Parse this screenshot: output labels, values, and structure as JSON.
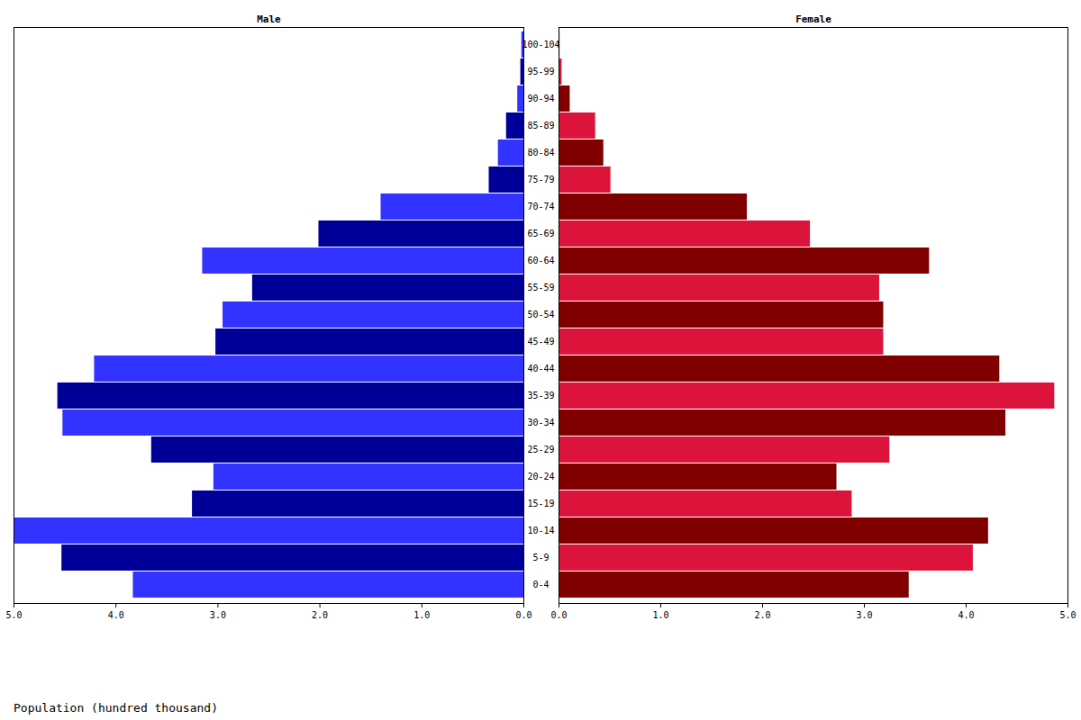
{
  "chart_data": {
    "type": "bar",
    "orientation": "horizontal",
    "xlabel": "Population (hundred thousand)",
    "categories": [
      "0-4",
      "5-9",
      "10-14",
      "15-19",
      "20-24",
      "25-29",
      "30-34",
      "35-39",
      "40-44",
      "45-49",
      "50-54",
      "55-59",
      "60-64",
      "65-69",
      "70-74",
      "75-79",
      "80-84",
      "85-89",
      "90-94",
      "95-99",
      "100-104"
    ],
    "series": [
      {
        "name": "Male",
        "colors": [
          "#3333ff",
          "#000099",
          "#3333ff",
          "#000099",
          "#3333ff",
          "#000099",
          "#3333ff",
          "#000099",
          "#3333ff",
          "#000099",
          "#3333ff",
          "#000099",
          "#3333ff",
          "#000099",
          "#3333ff",
          "#000099",
          "#3333ff",
          "#000099",
          "#3333ff",
          "#000099",
          "#3333ff"
        ],
        "values": [
          3.83,
          4.53,
          5.0,
          3.25,
          3.04,
          3.65,
          4.52,
          4.57,
          4.21,
          3.02,
          2.95,
          2.66,
          3.15,
          2.01,
          1.4,
          0.34,
          0.25,
          0.17,
          0.06,
          0.03,
          0.02
        ]
      },
      {
        "name": "Female",
        "colors": [
          "#800000",
          "#dc143c",
          "#800000",
          "#dc143c",
          "#800000",
          "#dc143c",
          "#800000",
          "#dc143c",
          "#800000",
          "#dc143c",
          "#800000",
          "#dc143c",
          "#800000",
          "#dc143c",
          "#800000",
          "#dc143c",
          "#800000",
          "#dc143c",
          "#800000",
          "#dc143c",
          "#800000"
        ],
        "values": [
          3.44,
          4.07,
          4.22,
          2.88,
          2.73,
          3.25,
          4.39,
          4.87,
          4.33,
          3.19,
          3.19,
          3.15,
          3.64,
          2.47,
          1.85,
          0.51,
          0.44,
          0.36,
          0.11,
          0.03,
          0.01
        ]
      }
    ],
    "xlim": [
      0,
      5
    ],
    "xticks": [
      0,
      1,
      2,
      3,
      4,
      5
    ],
    "grid": false
  }
}
